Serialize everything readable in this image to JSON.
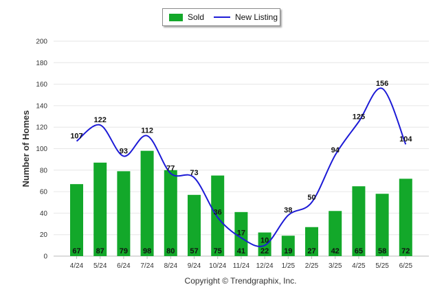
{
  "chart_data": {
    "type": "bar",
    "title": "",
    "xlabel": "",
    "ylabel": "Number of Homes",
    "ylim": [
      0,
      200
    ],
    "yticks": [
      0,
      20,
      40,
      60,
      80,
      100,
      120,
      140,
      160,
      180,
      200
    ],
    "categories": [
      "4/24",
      "5/24",
      "6/24",
      "7/24",
      "8/24",
      "9/24",
      "10/24",
      "11/24",
      "12/24",
      "1/25",
      "2/25",
      "3/25",
      "4/25",
      "5/25",
      "6/25"
    ],
    "series": [
      {
        "name": "Sold",
        "type": "bar",
        "color": "#13a82a",
        "values": [
          67,
          87,
          79,
          98,
          80,
          57,
          75,
          41,
          22,
          19,
          27,
          42,
          65,
          58,
          72
        ]
      },
      {
        "name": "New Listing",
        "type": "line",
        "color": "#1c1ad6",
        "values": [
          107,
          122,
          93,
          112,
          77,
          73,
          36,
          17,
          10,
          38,
          50,
          94,
          125,
          156,
          104
        ]
      }
    ],
    "grid": true,
    "legend_position": "top-center"
  },
  "footer": {
    "copyright": "Copyright © Trendgraphix, Inc."
  }
}
